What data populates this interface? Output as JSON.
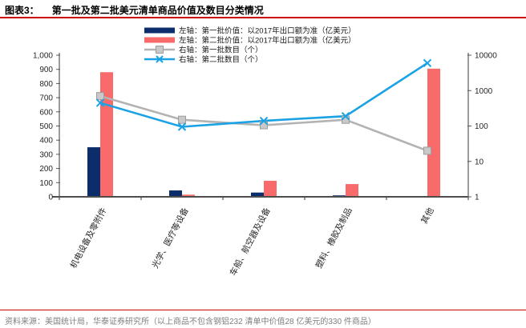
{
  "header": {
    "figure_label": "图表3：",
    "title": "第一批及第二批美元清单商品价值及数目分类情况"
  },
  "footer": {
    "source": "资料来源：美国统计局，华泰证券研究所（以上商品不包含钢铝232 清单中价值28 亿美元的330 件商品）"
  },
  "colors": {
    "batch1_bar": "#0c2d6b",
    "batch2_bar": "#f96b6b",
    "batch1_line": "#b3b3b3",
    "batch1_marker_fill": "#c9c9c9",
    "batch1_marker_stroke": "#9d9d9d",
    "batch2_line": "#1ba2e4",
    "rule_red": "#cc0000",
    "axis_line": "#595959",
    "tick_text": "#262626",
    "legend_text": "#1a1a1a",
    "source_text": "#7f7f7f"
  },
  "chart_data": {
    "type": "bar+line combo, dual axis",
    "title": "第一批及第二批美元清单商品价值及数目分类情况",
    "categories": [
      "机电设备及零附件",
      "光学、医疗等设备",
      "车船、航空器及设备",
      "塑料、橡胶及制品",
      "其他"
    ],
    "series": [
      {
        "name": "左轴：第一批价值：以2017年出口额为准（亿美元）",
        "type": "bar",
        "axis": "left",
        "marker": "none",
        "values": [
          350,
          45,
          30,
          10,
          5
        ]
      },
      {
        "name": "左轴：第二批价值：以2017年出口额为准（亿美元）",
        "type": "bar",
        "axis": "left",
        "marker": "none",
        "values": [
          880,
          15,
          113,
          90,
          905
        ]
      },
      {
        "name": "右轴：第一批数目（个）",
        "type": "line",
        "axis": "right",
        "marker": "square",
        "values": [
          700,
          150,
          105,
          150,
          20
        ]
      },
      {
        "name": "右轴：第二批数目（个）",
        "type": "line",
        "axis": "right",
        "marker": "x",
        "values": [
          450,
          95,
          140,
          190,
          6000
        ]
      }
    ],
    "left_axis": {
      "label": "",
      "min": 0,
      "max": 1000,
      "ticks": [
        0,
        100,
        200,
        300,
        400,
        500,
        600,
        700,
        800,
        900,
        1000
      ],
      "scale": "linear"
    },
    "right_axis": {
      "label": "",
      "ticks": [
        1,
        10,
        100,
        1000,
        10000
      ],
      "scale": "log"
    },
    "grid": false,
    "legend_position": "top-inside-left"
  }
}
